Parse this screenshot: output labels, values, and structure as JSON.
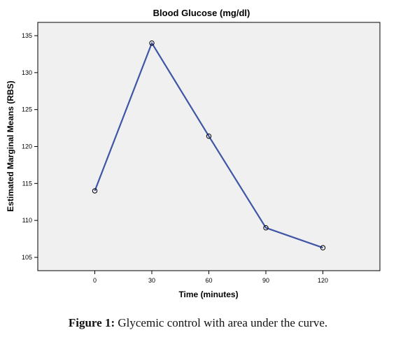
{
  "chart_data": {
    "type": "line",
    "title": "Blood Glucose (mg/dl)",
    "xlabel": "Time (minutes)",
    "ylabel": "Estimated Marginal Means (RBS)",
    "x": [
      0,
      30,
      60,
      90,
      120
    ],
    "series": [
      {
        "values": [
          114.0,
          134.0,
          121.4,
          109.0,
          106.3
        ]
      }
    ],
    "xlim": [
      -30,
      150
    ],
    "ylim": [
      103.2,
      136.8
    ],
    "xticks": [
      "0",
      "30",
      "60",
      "90",
      "120"
    ],
    "yticks": [
      "105",
      "110",
      "115",
      "120",
      "125",
      "130",
      "135"
    ],
    "grid": false,
    "marker": "circle",
    "colors": {
      "line": "#3f55a6",
      "plot_background": "#f0f0f0",
      "axis": "#000000"
    }
  },
  "caption": {
    "prefix": "Figure 1:",
    "text": "Glycemic control with area under the curve."
  }
}
